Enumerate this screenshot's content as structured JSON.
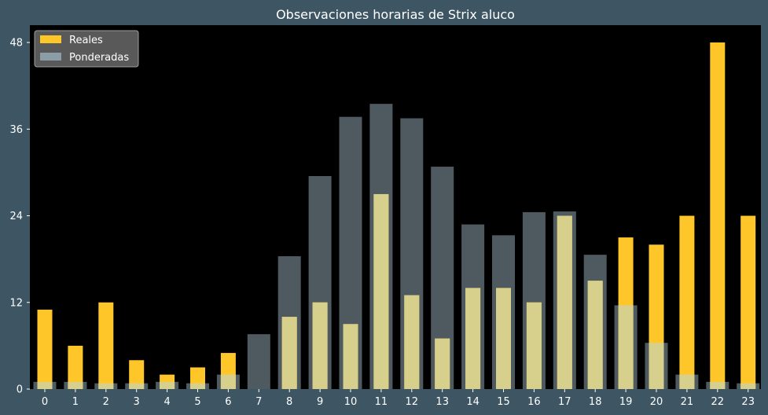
{
  "chart_data": {
    "type": "bar",
    "title": "Observaciones horarias de Strix aluco",
    "xlabel": "",
    "ylabel": "",
    "categories": [
      "0",
      "1",
      "2",
      "3",
      "4",
      "5",
      "6",
      "7",
      "8",
      "9",
      "10",
      "11",
      "12",
      "13",
      "14",
      "15",
      "16",
      "17",
      "18",
      "19",
      "20",
      "21",
      "22",
      "23"
    ],
    "yticks": [
      0,
      12,
      24,
      36,
      48
    ],
    "ylim": [
      0,
      50.4
    ],
    "grid": false,
    "legend_position": "top-left",
    "series": [
      {
        "name": "Reales",
        "color": "#ffc629",
        "values": [
          11,
          6,
          12,
          4,
          2,
          3,
          5,
          0,
          10,
          12,
          9,
          27,
          13,
          7,
          14,
          14,
          12,
          24,
          15,
          21,
          20,
          24,
          48,
          24
        ]
      },
      {
        "name": "Ponderadas",
        "color": "#90a4ae",
        "opacity": 0.55,
        "values": [
          1,
          1,
          0.8,
          0.8,
          1,
          0.8,
          2,
          7.6,
          18.4,
          29.5,
          37.7,
          39.5,
          37.5,
          30.8,
          22.8,
          21.3,
          24.5,
          24.6,
          18.6,
          11.6,
          6.4,
          2,
          1,
          0.8
        ]
      }
    ],
    "colors": {
      "background": "#3e5663",
      "plot_background": "#000000",
      "text": "#ffffff",
      "legend_background": "#595959"
    }
  }
}
